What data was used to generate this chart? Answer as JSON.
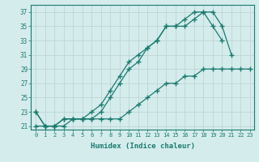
{
  "xlabel": "Humidex (Indice chaleur)",
  "bg_color": "#d4ecec",
  "grid_color": "#c0d8d8",
  "line_color": "#1a7a6e",
  "xlim_min": -0.5,
  "xlim_max": 23.4,
  "ylim_min": 20.5,
  "ylim_max": 38.0,
  "xticks": [
    0,
    1,
    2,
    3,
    4,
    5,
    6,
    7,
    8,
    9,
    10,
    11,
    12,
    13,
    14,
    15,
    16,
    17,
    18,
    19,
    20,
    21,
    22,
    23
  ],
  "yticks": [
    21,
    23,
    25,
    27,
    29,
    31,
    33,
    35,
    37
  ],
  "line1_x": [
    0,
    1,
    2,
    3,
    4,
    5,
    6,
    7,
    8,
    9,
    10,
    11,
    12,
    13,
    14,
    15,
    16,
    17,
    18,
    19,
    20
  ],
  "line1_y": [
    23,
    21,
    21,
    22,
    22,
    22,
    23,
    24,
    26,
    28,
    30,
    31,
    32,
    33,
    35,
    35,
    36,
    37,
    37,
    35,
    33
  ],
  "line2_x": [
    0,
    1,
    2,
    3,
    4,
    5,
    6,
    7,
    8,
    9,
    10,
    11,
    12,
    13,
    14,
    15,
    16,
    17,
    18,
    19,
    20,
    21
  ],
  "line2_y": [
    23,
    21,
    21,
    22,
    22,
    22,
    22,
    23,
    25,
    27,
    29,
    30,
    32,
    33,
    35,
    35,
    35,
    36,
    37,
    37,
    35,
    31
  ],
  "line3_x": [
    0,
    1,
    2,
    3,
    4,
    5,
    6,
    7,
    8,
    9,
    10,
    11,
    12,
    13,
    14,
    15,
    16,
    17,
    18,
    19,
    20,
    21,
    22,
    23
  ],
  "line3_y": [
    21,
    21,
    21,
    21,
    22,
    22,
    22,
    22,
    22,
    22,
    23,
    24,
    25,
    26,
    27,
    27,
    28,
    28,
    29,
    29,
    29,
    29,
    29,
    29
  ]
}
